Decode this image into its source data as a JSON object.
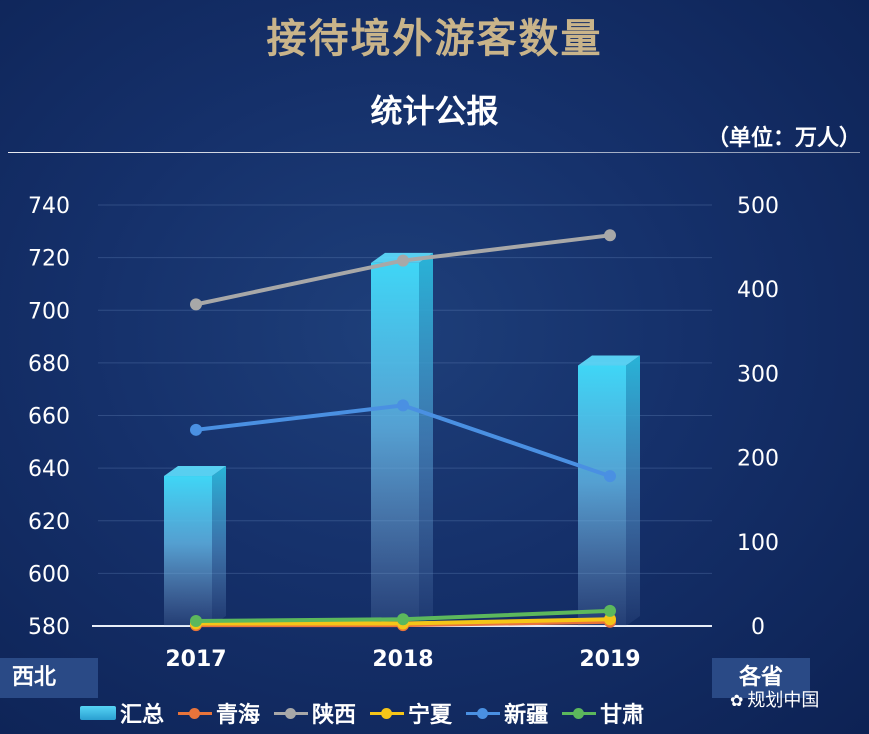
{
  "header": {
    "title": "接待境外游客数量",
    "subtitle": "统计公报",
    "unit": "（单位：万人）"
  },
  "tags": {
    "left": "西北",
    "right": "各省"
  },
  "watermark": "规划中国",
  "chart_data": {
    "type": "bar",
    "categories": [
      "2017",
      "2018",
      "2019"
    ],
    "left_axis": {
      "ylim": [
        580,
        740
      ],
      "ticks": [
        580,
        600,
        620,
        640,
        660,
        680,
        700,
        720,
        740
      ]
    },
    "right_axis": {
      "ylim": [
        0,
        500
      ],
      "ticks": [
        0,
        100,
        200,
        300,
        400,
        500
      ]
    },
    "bar_series": {
      "name": "汇总",
      "axis": "left",
      "values": [
        637,
        718,
        679
      ],
      "color": "#3fd0f2"
    },
    "line_series": [
      {
        "name": "青海",
        "axis": "right",
        "values": [
          1,
          1,
          5
        ],
        "color": "#e8743b"
      },
      {
        "name": "陕西",
        "axis": "right",
        "values": [
          382,
          434,
          464
        ],
        "color": "#a8a8a8"
      },
      {
        "name": "宁夏",
        "axis": "right",
        "values": [
          3,
          3,
          8
        ],
        "color": "#f5c518"
      },
      {
        "name": "新疆",
        "axis": "right",
        "values": [
          233,
          262,
          178
        ],
        "color": "#4a90e2"
      },
      {
        "name": "甘肃",
        "axis": "right",
        "values": [
          6,
          8,
          18
        ],
        "color": "#5cb85c"
      }
    ]
  }
}
